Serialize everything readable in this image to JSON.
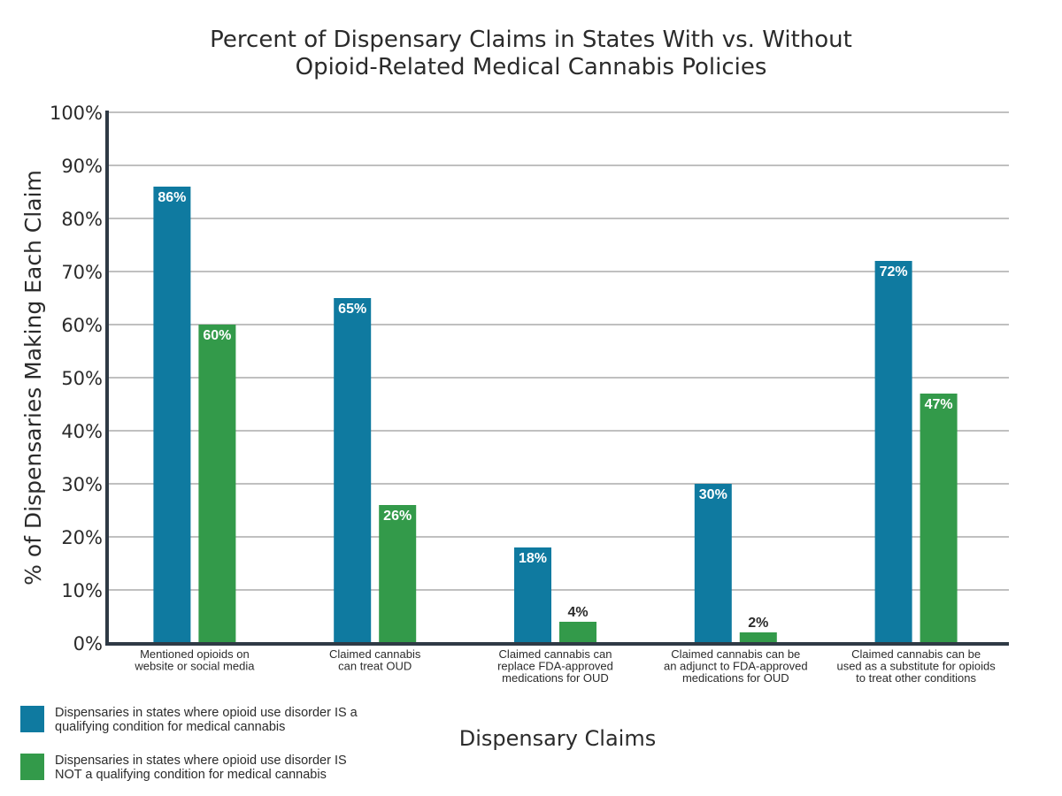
{
  "chart_data": {
    "type": "bar",
    "title": [
      "Percent of Dispensary Claims in States With vs. Without",
      "Opioid-Related Medical Cannabis Policies"
    ],
    "xlabel": "Dispensary Claims",
    "ylabel": "% of Dispensaries Making Each Claim",
    "ylim": [
      0,
      100
    ],
    "yticks": [
      0,
      10,
      20,
      30,
      40,
      50,
      60,
      70,
      80,
      90,
      100
    ],
    "ytick_labels": [
      "0%",
      "10%",
      "20%",
      "30%",
      "40%",
      "50%",
      "60%",
      "70%",
      "80%",
      "90%",
      "100%"
    ],
    "grid": true,
    "legend_position": "bottom-left",
    "categories": [
      [
        "Mentioned opioids on",
        "website or social media"
      ],
      [
        "Claimed cannabis",
        "can treat OUD"
      ],
      [
        "Claimed cannabis can",
        "replace FDA-approved",
        "medications for OUD"
      ],
      [
        "Claimed cannabis can be",
        "an adjunct to FDA-approved",
        "medications for OUD"
      ],
      [
        "Claimed cannabis can be",
        "used as a substitute for opioids",
        "to treat other conditions"
      ]
    ],
    "series": [
      {
        "name": [
          "Dispensaries in states where opioid use disorder IS a",
          "qualifying condition for medical cannabis"
        ],
        "color": "#0f7aa0",
        "values": [
          86,
          65,
          18,
          30,
          72
        ],
        "labels": [
          "86%",
          "65%",
          "18%",
          "30%",
          "72%"
        ]
      },
      {
        "name": [
          "Dispensaries in states where opioid use disorder IS",
          "NOT a qualifying condition for medical cannabis"
        ],
        "color": "#339a4a",
        "values": [
          60,
          26,
          4,
          2,
          47
        ],
        "labels": [
          "60%",
          "26%",
          "4%",
          "2%",
          "47%"
        ]
      }
    ],
    "colors": {
      "axis": "#2f3a45",
      "grid": "#9a9a9a",
      "text": "#2b2b2b",
      "label_inside": "#ffffff"
    }
  }
}
